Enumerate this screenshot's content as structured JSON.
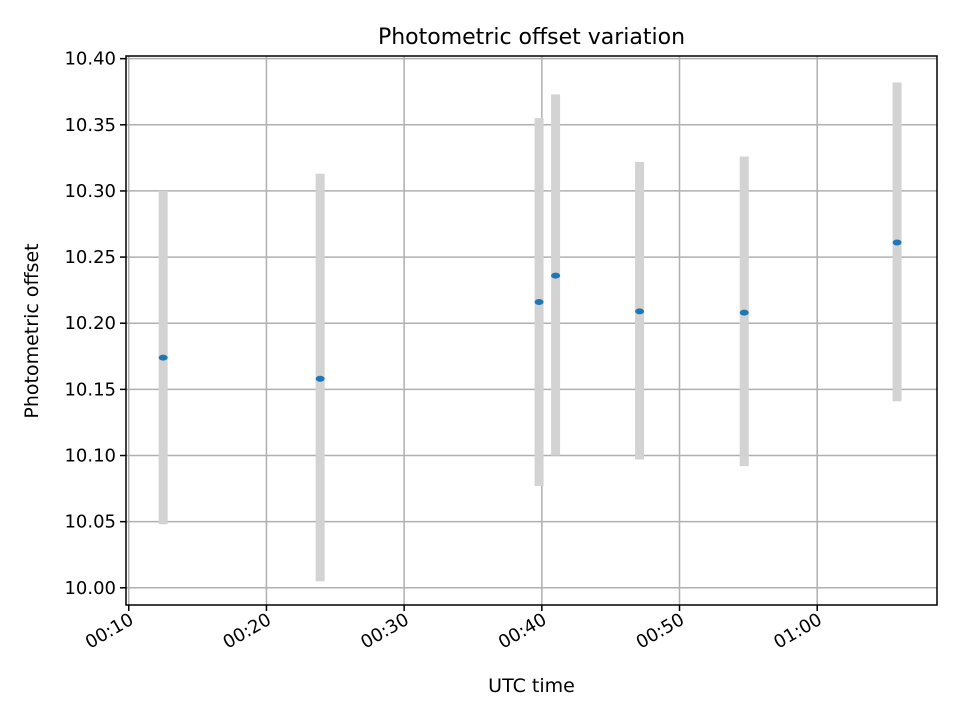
{
  "chart_data": {
    "type": "scatter",
    "title": "Photometric offset variation",
    "xlabel": "UTC time",
    "ylabel": "Photometric offset",
    "x_ticks": [
      "00:10",
      "00:20",
      "00:30",
      "00:40",
      "00:50",
      "01:00"
    ],
    "y_ticks": [
      "10.00",
      "10.05",
      "10.10",
      "10.15",
      "10.20",
      "10.25",
      "10.30",
      "10.35",
      "10.40"
    ],
    "xlim": [
      "00:09.8",
      "01:08.7"
    ],
    "ylim": [
      9.987,
      10.402
    ],
    "grid": true,
    "points": [
      {
        "time": "00:12.5",
        "offset": 10.174,
        "low": 10.048,
        "high": 10.3
      },
      {
        "time": "00:23.9",
        "offset": 10.158,
        "low": 10.005,
        "high": 10.313
      },
      {
        "time": "00:39.8",
        "offset": 10.216,
        "low": 10.077,
        "high": 10.355
      },
      {
        "time": "00:41.0",
        "offset": 10.236,
        "low": 10.1,
        "high": 10.373
      },
      {
        "time": "00:47.1",
        "offset": 10.209,
        "low": 10.097,
        "high": 10.322
      },
      {
        "time": "00:54.7",
        "offset": 10.208,
        "low": 10.092,
        "high": 10.326
      },
      {
        "time": "01:05.8",
        "offset": 10.261,
        "low": 10.141,
        "high": 10.382
      }
    ],
    "colors": {
      "point": "#1f77b4",
      "errorbar": "#d3d3d3",
      "grid": "#b0b0b0"
    }
  }
}
